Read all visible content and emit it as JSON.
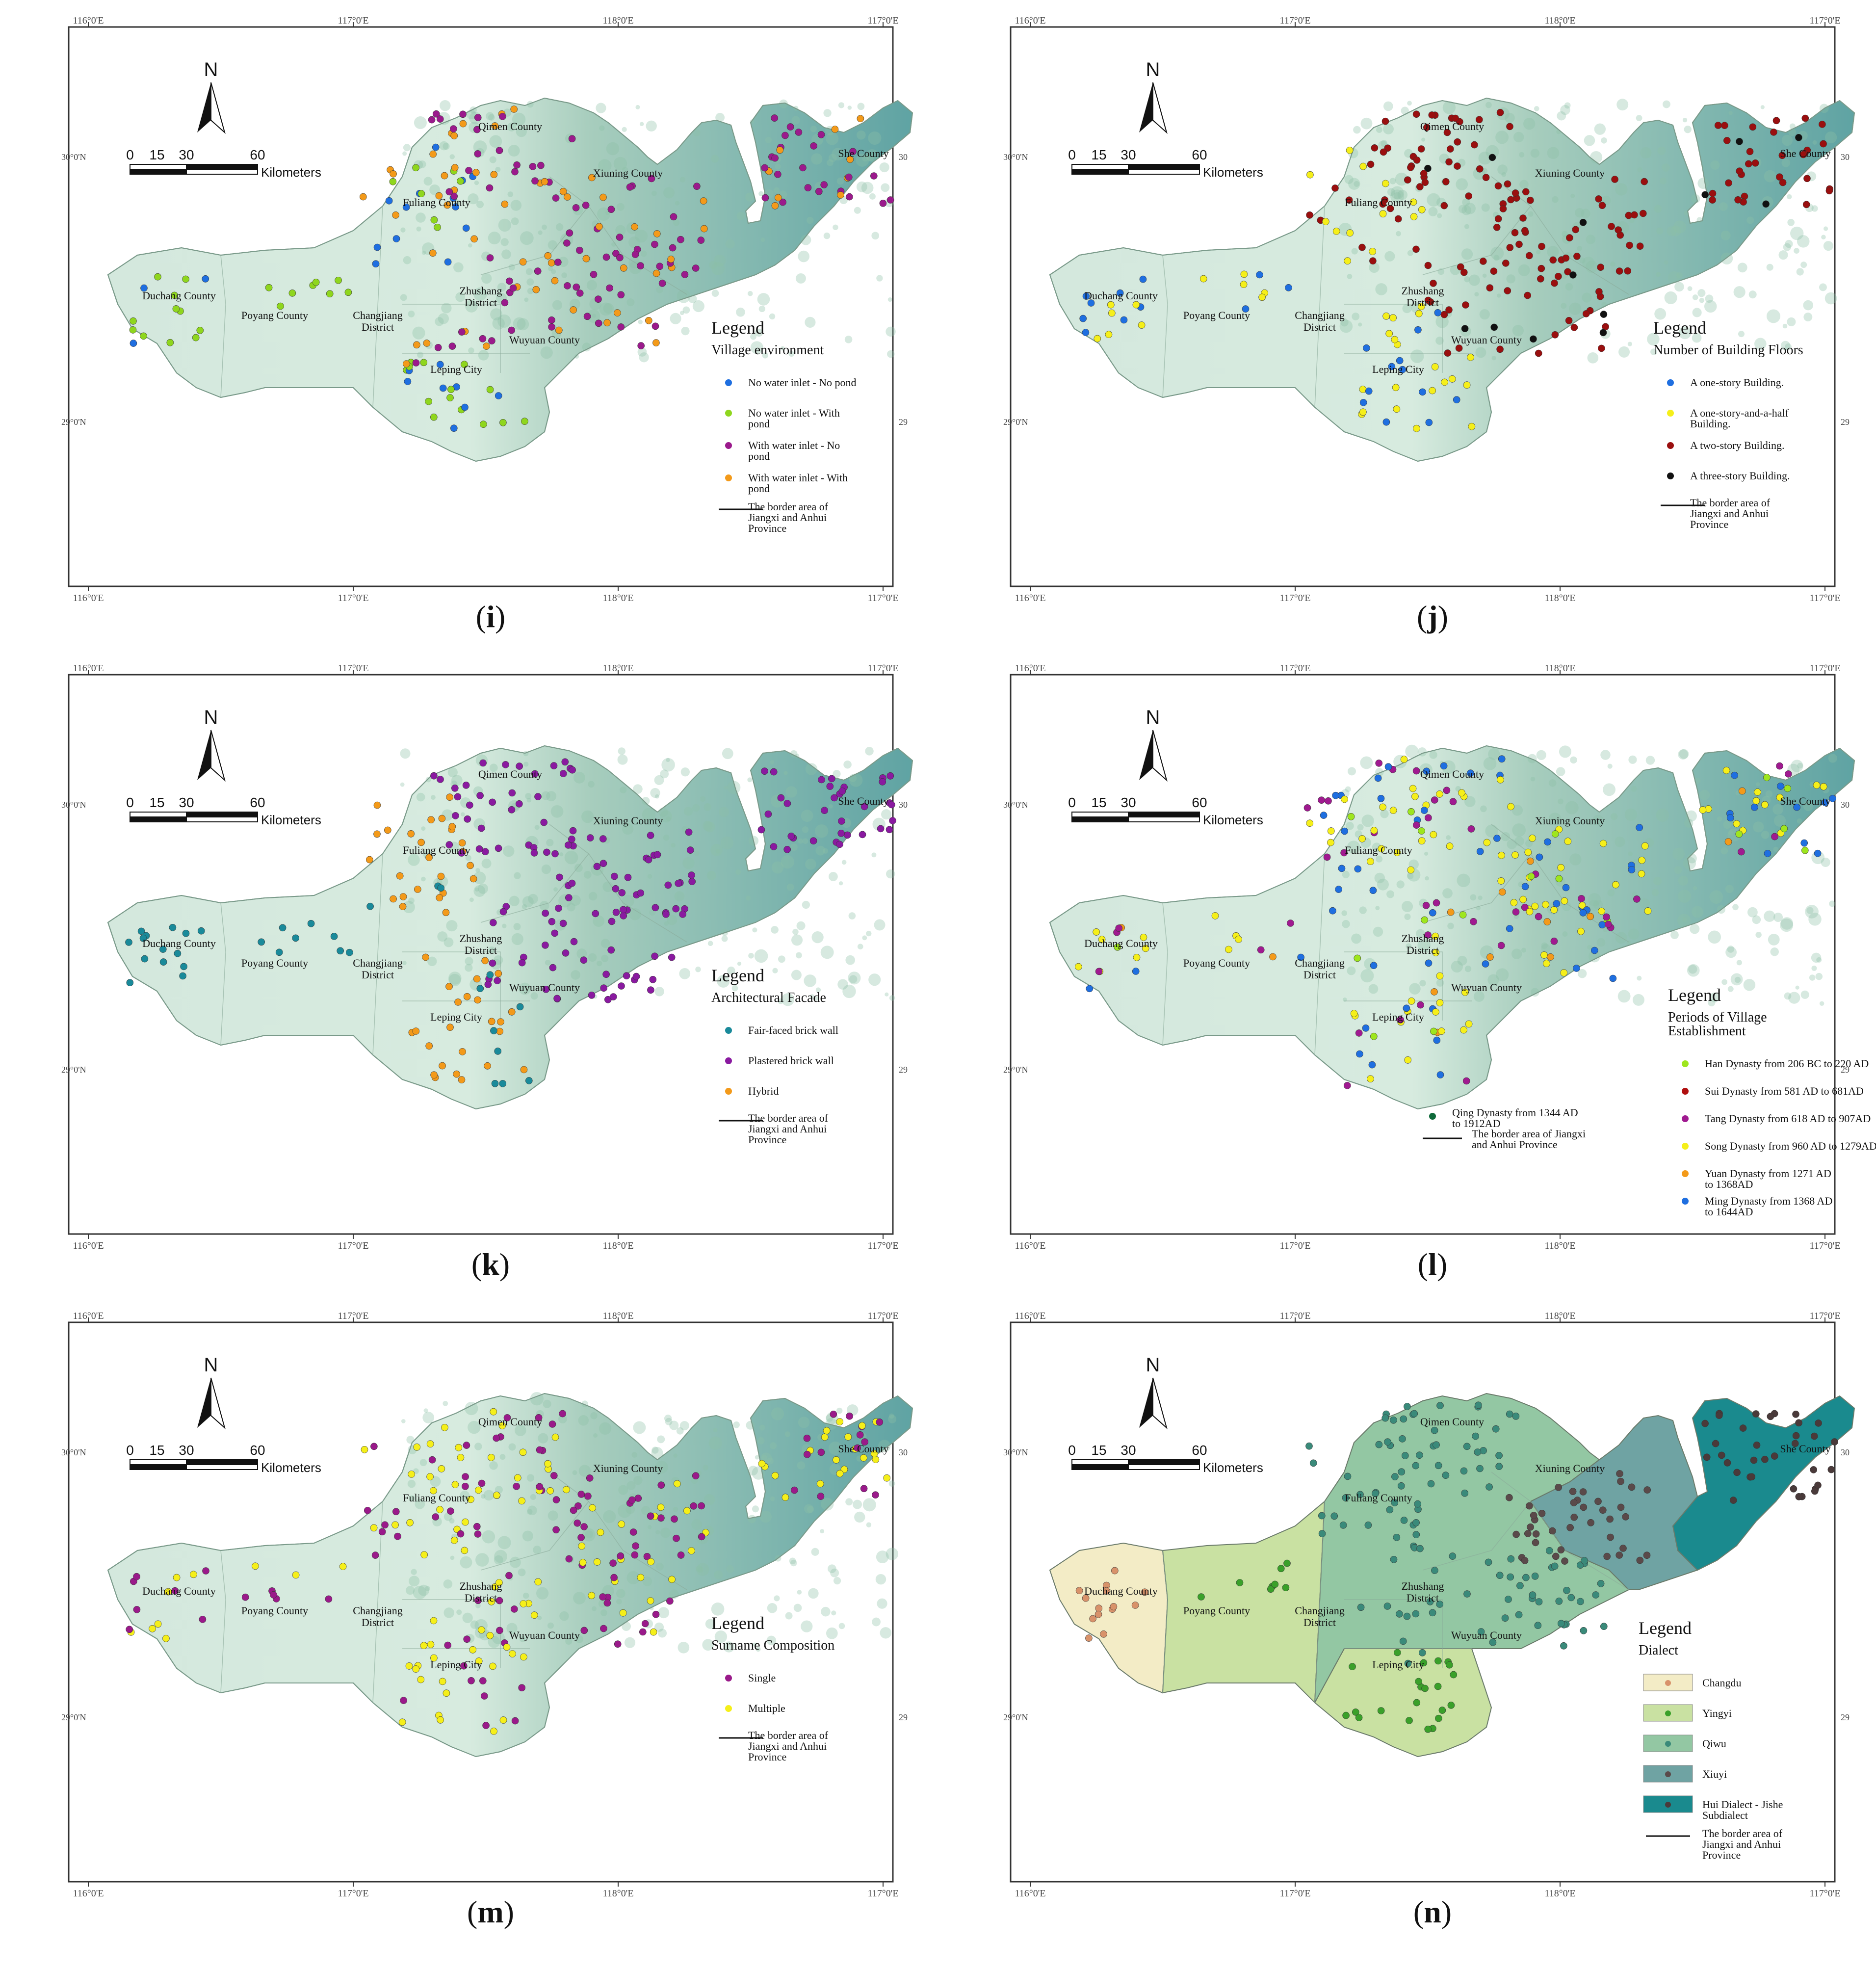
{
  "common": {
    "north_letter": "N",
    "scale_ticks": [
      "0",
      "15",
      "30",
      "60"
    ],
    "scale_unit": "Kilometers",
    "lon_labels": [
      "116°0'E",
      "117°0'E",
      "118°0'E",
      "117°0'E"
    ],
    "lat_left": [
      "30°0'N",
      "29°0'N"
    ],
    "lat_right": [
      "30",
      "29"
    ],
    "county_labels": [
      "Qimen County",
      "She County",
      "Xiuning County",
      "Fuliang County",
      "Duchang County",
      "Poyang County",
      "Zhushang District",
      "Changjiang District",
      "Wuyuan County",
      "Leping City"
    ],
    "border_label": [
      "The border area of",
      "Jiangxi and Anhui",
      "Province"
    ],
    "legend_word": "Legend"
  },
  "panels": [
    {
      "label": "i",
      "legend_title": [
        "Village environment"
      ],
      "legend_items": [
        {
          "text": [
            "No water inlet - No pond"
          ],
          "color": "#1f6fe0"
        },
        {
          "text": [
            "No water inlet - With",
            "pond"
          ],
          "color": "#8fd61e"
        },
        {
          "text": [
            "With water inlet - No",
            "pond"
          ],
          "color": "#9b1a8c"
        },
        {
          "text": [
            "With water inlet - With",
            " pond"
          ],
          "color": "#f39a1a"
        }
      ]
    },
    {
      "label": "j",
      "legend_title": [
        "Number of Building Floors"
      ],
      "legend_items": [
        {
          "text": [
            "A one-story Building."
          ],
          "color": "#1f6fe0"
        },
        {
          "text": [
            "A one-story-and-a-half",
            "Building."
          ],
          "color": "#f5ef1a"
        },
        {
          "text": [
            "A two-story Building."
          ],
          "color": "#9a0f0f"
        },
        {
          "text": [
            "A three-story Building."
          ],
          "color": "#111111"
        }
      ]
    },
    {
      "label": "k",
      "legend_title": [
        "Architectural Facade"
      ],
      "legend_items": [
        {
          "text": [
            "Fair-faced brick wall"
          ],
          "color": "#1a8a9a"
        },
        {
          "text": [
            "Plastered brick wall"
          ],
          "color": "#8a1aa0"
        },
        {
          "text": [
            "Hybrid"
          ],
          "color": "#f39a1a"
        }
      ]
    },
    {
      "label": "l",
      "legend_title": [
        "Periods  of Village",
        "Establishment"
      ],
      "legend_items": [
        {
          "text": [
            "Han Dynasty from 206 BC to 220 AD"
          ],
          "color": "#9ee61e"
        },
        {
          "text": [
            "Sui Dynasty from 581 AD to 681AD"
          ],
          "color": "#b00f0f"
        },
        {
          "text": [
            "Tang Dynasty from 618 AD to 907AD"
          ],
          "color": "#a01a90"
        },
        {
          "text": [
            "Song Dynasty from 960 AD to 1279AD"
          ],
          "color": "#f5ef1a"
        },
        {
          "text": [
            "Yuan Dynasty from 1271 AD",
            "to 1368AD"
          ],
          "color": "#f39a1a"
        },
        {
          "text": [
            "Ming Dynasty from 1368 AD",
            "to 1644AD"
          ],
          "color": "#1f6fe0"
        }
      ],
      "extra_item": {
        "text": [
          "Qing Dynasty from 1344 AD",
          "to 1912AD"
        ],
        "color": "#0f6a3a"
      },
      "border_label": [
        "The border area of Jiangxi",
        "and Anhui Province"
      ]
    },
    {
      "label": "m",
      "legend_title": [
        "Surname Composition"
      ],
      "legend_items": [
        {
          "text": [
            "Single"
          ],
          "color": "#9a1a8a"
        },
        {
          "text": [
            "Multiple"
          ],
          "color": "#f5ef1a"
        }
      ]
    },
    {
      "label": "n",
      "legend_title": [
        "Dialect"
      ],
      "legend_items": [
        {
          "text": [
            "Changdu"
          ],
          "color": "#f3ecc6",
          "dot": "#d8926a"
        },
        {
          "text": [
            "Yingyi"
          ],
          "color": "#c9e1a2",
          "dot": "#3aa02a"
        },
        {
          "text": [
            "Qiwu"
          ],
          "color": "#93c7a3",
          "dot": "#3a8a7a"
        },
        {
          "text": [
            "Xiuyi"
          ],
          "color": "#6fa3a3",
          "dot": "#5a4a4a"
        },
        {
          "text": [
            "Hui Dialect - Jishe",
            " Subdialect"
          ],
          "color": "#1a8a8e",
          "dot": "#4a3a3a"
        }
      ]
    }
  ]
}
